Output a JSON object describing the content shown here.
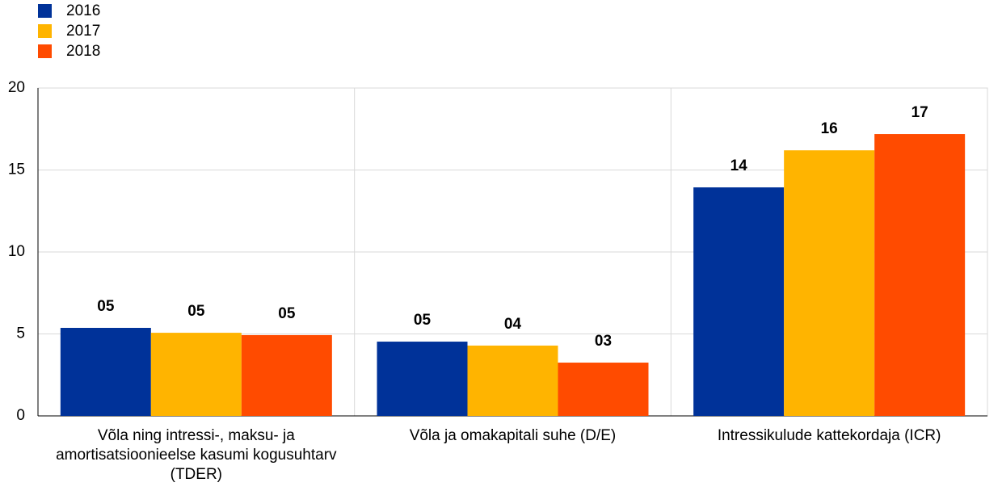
{
  "chart_data": {
    "type": "bar",
    "categories": [
      "Võla ning intressi-, maksu- ja amortisatsioonieelse kasumi kogusuhtarv (TDER)",
      "Võla ja omakapitali suhe (D/E)",
      "Intressikulude kattekordaja (ICR)"
    ],
    "series": [
      {
        "name": "2016",
        "color": "#003299",
        "values": [
          5.37,
          4.53,
          13.94
        ],
        "value_labels": [
          "05",
          "05",
          "14"
        ]
      },
      {
        "name": "2017",
        "color": "#ffb400",
        "values": [
          5.07,
          4.29,
          16.2
        ],
        "value_labels": [
          "05",
          "04",
          "16"
        ]
      },
      {
        "name": "2018",
        "color": "#ff4b00",
        "values": [
          4.93,
          3.25,
          17.19
        ],
        "value_labels": [
          "05",
          "03",
          "17"
        ]
      }
    ],
    "ylim": [
      0,
      20
    ],
    "yticks": [
      0,
      5,
      10,
      15,
      20
    ],
    "grid": true,
    "legend": "top-left"
  }
}
